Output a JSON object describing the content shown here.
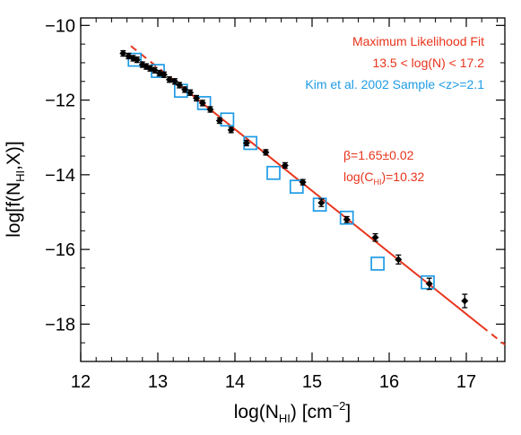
{
  "chart_data": {
    "type": "scatter",
    "title": "",
    "xlabel": "log(N",
    "xlabel_sub": "HI",
    "xlabel_unit": ") [cm",
    "xlabel_sup": "−2",
    "xlabel_end": "]",
    "ylabel": "log[f(N",
    "ylabel_sub": "HI",
    "ylabel_end": ",X)]",
    "xlim": [
      12,
      17.5
    ],
    "ylim": [
      -19,
      -9.8
    ],
    "x_ticks": [
      12,
      13,
      14,
      15,
      16,
      17
    ],
    "x_tick_labels": [
      "12",
      "13",
      "14",
      "15",
      "16",
      "17"
    ],
    "y_ticks": [
      -10,
      -12,
      -14,
      -16,
      -18
    ],
    "y_tick_labels": [
      "−10",
      "−12",
      "−14",
      "−16",
      "−18"
    ],
    "grid": false,
    "legend": {
      "position": "top-right",
      "entries": [
        {
          "text": "Maximum Likelihood Fit",
          "color": "#e8341c"
        },
        {
          "text": "13.5 < log(N) < 17.2",
          "color": "#e8341c"
        },
        {
          "text": "Kim et al. 2002 Sample <z>=2.1",
          "color": "#1e9be6"
        }
      ]
    },
    "annotations": {
      "beta": "β=1.65±0.02",
      "chi_prefix": "log(C",
      "chi_sub": "HI",
      "chi_suffix": ")=10.32",
      "color": "#e8341c"
    },
    "series": [
      {
        "name": "Maximum Likelihood Fit",
        "kind": "line",
        "color": "#e8341c",
        "x": [
          13.5,
          17.2
        ],
        "y": [
          -11.955,
          -18.06
        ],
        "dashed_extension": [
          {
            "x": [
              12.65,
              13.5
            ],
            "y": [
              -10.55,
              -11.955
            ]
          },
          {
            "x": [
              17.2,
              17.5
            ],
            "y": [
              -18.06,
              -18.55
            ]
          }
        ]
      },
      {
        "kind": "points",
        "marker": "diamond",
        "color": "#000000",
        "x": [
          12.55,
          12.62,
          12.68,
          12.73,
          12.8,
          12.85,
          12.9,
          12.96,
          13.02,
          13.08,
          13.15,
          13.22,
          13.28,
          13.35,
          13.42,
          13.5,
          13.58,
          13.68,
          13.8,
          13.95,
          14.15,
          14.4,
          14.65,
          14.88,
          15.12,
          15.45,
          15.82,
          16.12,
          16.52,
          16.98
        ],
        "y": [
          -10.75,
          -10.82,
          -10.88,
          -10.92,
          -11.05,
          -11.1,
          -11.15,
          -11.2,
          -11.28,
          -11.32,
          -11.45,
          -11.5,
          -11.6,
          -11.72,
          -11.8,
          -11.95,
          -12.08,
          -12.25,
          -12.55,
          -12.8,
          -13.15,
          -13.4,
          -13.75,
          -14.2,
          -14.75,
          -15.2,
          -15.68,
          -16.27,
          -16.92,
          -17.38
        ],
        "yerr": [
          0.05,
          0.05,
          0.05,
          0.05,
          0.05,
          0.05,
          0.05,
          0.05,
          0.05,
          0.05,
          0.05,
          0.05,
          0.05,
          0.05,
          0.05,
          0.05,
          0.05,
          0.05,
          0.05,
          0.05,
          0.07,
          0.07,
          0.07,
          0.07,
          0.1,
          0.08,
          0.1,
          0.12,
          0.15,
          0.18
        ]
      },
      {
        "name": "Kim et al. 2002 Sample <z>=2.1",
        "kind": "points",
        "marker": "square",
        "color": "#1e9be6",
        "x": [
          12.7,
          13.0,
          13.3,
          13.6,
          13.9,
          14.2,
          14.5,
          14.8,
          15.1,
          15.45,
          15.85,
          16.5
        ],
        "y": [
          -10.92,
          -11.22,
          -11.75,
          -12.08,
          -12.52,
          -13.15,
          -13.95,
          -14.32,
          -14.8,
          -15.15,
          -16.38,
          -16.88
        ]
      }
    ]
  }
}
